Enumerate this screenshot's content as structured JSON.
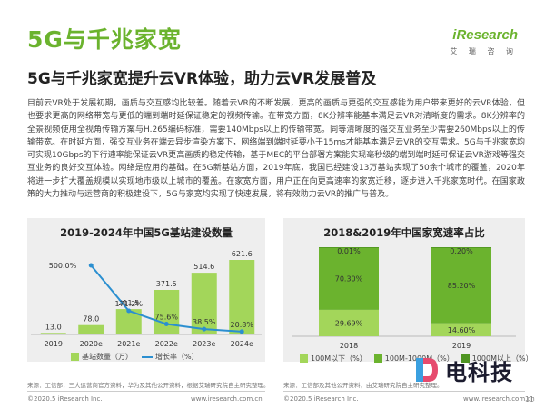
{
  "header": {
    "title": "5G与千兆家宽",
    "logo_word": "iResearch",
    "logo_cn": "艾 瑞 咨 询"
  },
  "subtitle": "5G与千兆家宽提升云VR体验，助力云VR发展普及",
  "body_text": "目前云VR处于发展初期，画质与交互感均比较差。随着云VR的不断发展，更高的画质与更强的交互感能为用户带来更好的云VR体验，但也要求更高的网络带宽与更低的端到端时延保证稳定的视频传输。在带宽方面，8K分辨率能基本满足云VR对清晰度的需求。8K分辨率的全景视频使用全视角传输方案与H.265编码标准，需要140Mbps以上的传输带宽。同等清晰度的强交互业务至少需要260Mbps以上的传输带宽。在时延方面，强交互业务在端云异步渲染方案下，网络端到端时延要小于15ms才能基本满足云VR的交互需求。5G与千兆家宽均可实现10Gbps的下行速率能保证云VR更高画质的稳定传输，基于MEC的平台部署方案能实现毫秒级的端到端时延可保证云VR游戏等强交互业务的良好交互体验。网络是应用的基础。在5G新基站方面，2019年底，我国已经建设13万基站实现了50余个城市的覆盖，2020年将进一步扩大覆盖规模以实现地市级以上城市的覆盖。在家宽方面，用户正在向更高速率的家宽迁移，逐步进入千兆家宽时代。在国家政策的大力推动与运营商的积极建设下，5G与家宽均实现了快速发展，将有效助力云VR的推广与普及。",
  "chart_data": [
    {
      "type": "bar",
      "title": "2019-2024年中国5G基站建设数量",
      "categories": [
        "2019",
        "2020e",
        "2021e",
        "2022e",
        "2023e",
        "2024e"
      ],
      "series": [
        {
          "name": "基站数量（万）",
          "type": "bar",
          "values": [
            13.0,
            78.0,
            211.5,
            371.5,
            514.6,
            621.6
          ],
          "value_labels": [
            "13.0",
            "78.0",
            "211.5",
            "371.5",
            "514.6",
            "621.6"
          ]
        },
        {
          "name": "增长率（%）",
          "type": "line",
          "values": [
            null,
            500.0,
            171.2,
            75.6,
            38.5,
            20.8
          ],
          "value_labels": [
            "",
            "500.0%",
            "171.2%",
            "75.6%",
            "38.5%",
            "20.8%"
          ]
        }
      ],
      "colors": {
        "bar": "#a3d65a",
        "line": "#2b8fd0"
      }
    },
    {
      "type": "bar",
      "stacked": true,
      "title": "2018&2019年中国家宽速率占比",
      "categories": [
        "2018",
        "2019"
      ],
      "series": [
        {
          "name": "100M以下（%）",
          "values": [
            29.69,
            14.6
          ],
          "value_labels": [
            "29.69%",
            "14.60%"
          ]
        },
        {
          "name": "100M-1000M（%）",
          "values": [
            70.3,
            85.2
          ],
          "value_labels": [
            "70.30%",
            "85.20%"
          ]
        },
        {
          "name": "1000M以上（%）",
          "values": [
            0.01,
            0.2
          ],
          "value_labels": [
            "0.01%",
            "0.20%"
          ]
        }
      ],
      "ylim": [
        0,
        100
      ],
      "colors": {
        "s1": "#a3d65a",
        "s2": "#6bb32e",
        "s3": "#4e9421"
      }
    }
  ],
  "footer": {
    "source_left": "来源：工信部，三大运营商官方资料，华为及其他公开资料，根据艾瑞研究院自主研究整理。",
    "source_right": "来源：工信部及其他公开资料，由艾瑞研究院自主研究整理。",
    "copyright_left": "©2020.5 iResearch Inc.",
    "url_left": "www.iresearch.com.cn",
    "copyright_right": "©2020.5 iResearch Inc.",
    "url_right": "www.iresearch.com.cn",
    "page_number": "11"
  },
  "watermark": {
    "text": "电科技"
  }
}
